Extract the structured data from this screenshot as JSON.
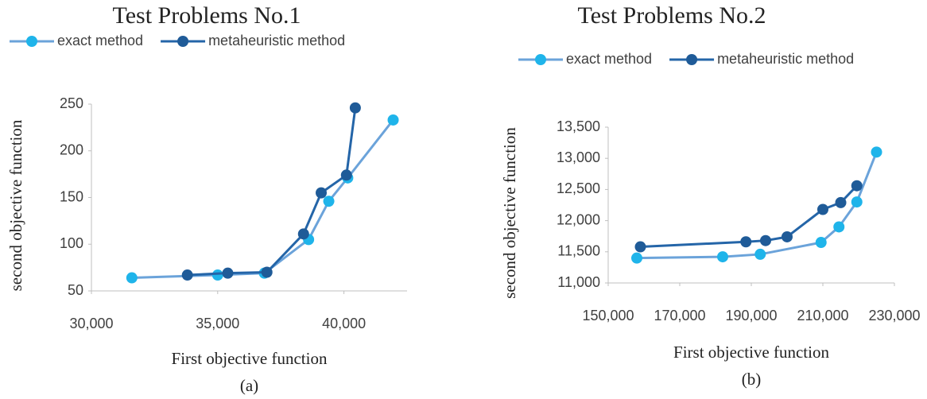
{
  "chart_data": [
    {
      "type": "line",
      "title": "Test Problems No.1",
      "x_label": "First objective function",
      "y_label": "second objective function",
      "caption": "(a)",
      "series": [
        {
          "name": "exact method",
          "color": "#6ba3da",
          "marker_color": "#1fb4ea",
          "x": [
            31600,
            35000,
            36850,
            38600,
            39400,
            40150,
            41950
          ],
          "values": [
            64,
            67,
            69,
            105,
            146,
            171,
            233
          ]
        },
        {
          "name": "metaheuristic method",
          "color": "#2465a8",
          "marker_color": "#1f5b98",
          "x": [
            33800,
            35400,
            36950,
            38400,
            39100,
            40100,
            40450
          ],
          "values": [
            67,
            69,
            70,
            111,
            155,
            174,
            246
          ]
        }
      ],
      "xlim": [
        30000,
        42500
      ],
      "xticks": [
        {
          "value": 30000,
          "label": "30,000"
        },
        {
          "value": 35000,
          "label": "35,000"
        },
        {
          "value": 40000,
          "label": "40,000"
        }
      ],
      "ylim": [
        50,
        250
      ],
      "yticks": [
        50,
        100,
        150,
        200,
        250
      ],
      "grid": false,
      "legend": "top"
    },
    {
      "type": "line",
      "title": "Test Problems No.2",
      "x_label": "First objective function",
      "y_label": "second objective function",
      "caption": "(b)",
      "series": [
        {
          "name": "exact method",
          "color": "#6ba3da",
          "marker_color": "#1fb4ea",
          "x": [
            158000,
            182000,
            192500,
            209500,
            214500,
            219500,
            225000
          ],
          "values": [
            11400,
            11420,
            11460,
            11650,
            11900,
            12300,
            13100
          ]
        },
        {
          "name": "metaheuristic method",
          "color": "#2465a8",
          "marker_color": "#1f5b98",
          "x": [
            159000,
            188500,
            194000,
            200000,
            210000,
            215000,
            219500
          ],
          "values": [
            11580,
            11660,
            11680,
            11740,
            12180,
            12290,
            12560
          ]
        }
      ],
      "xlim": [
        150000,
        230000
      ],
      "xticks": [
        {
          "value": 150000,
          "label": "150,000"
        },
        {
          "value": 170000,
          "label": "170,000"
        },
        {
          "value": 190000,
          "label": "190,000"
        },
        {
          "value": 210000,
          "label": "210,000"
        },
        {
          "value": 230000,
          "label": "230,000"
        }
      ],
      "ylim": [
        11000,
        13500
      ],
      "yticks": [
        {
          "value": 11000,
          "label": "11,000"
        },
        {
          "value": 11500,
          "label": "11,500"
        },
        {
          "value": 12000,
          "label": "12,000"
        },
        {
          "value": 12500,
          "label": "12,500"
        },
        {
          "value": 13000,
          "label": "13,000"
        },
        {
          "value": 13500,
          "label": "13,500"
        }
      ],
      "grid": false,
      "legend": "top"
    }
  ]
}
